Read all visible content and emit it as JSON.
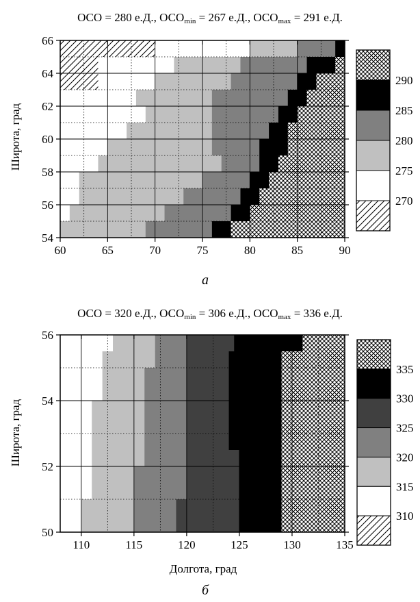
{
  "chart_data": [
    {
      "type": "heatmap",
      "title": "ОСО = 280 е.Д., ОСОmin = 267 е.Д., ОСОmax = 291 е.Д.",
      "title_parts": {
        "mean": "ОСО = 280 е.Д., ",
        "min_prefix": "ОСО",
        "min_sub": "min",
        "min_value": " = 267 е.Д., ",
        "max_prefix": "ОСО",
        "max_sub": "max",
        "max_value": " = 291 е.Д."
      },
      "xlabel": "",
      "ylabel": "Широта, град",
      "xlim": [
        60,
        90
      ],
      "ylim": [
        54,
        66
      ],
      "xticks": [
        "60",
        "65",
        "70",
        "75",
        "80",
        "85",
        "90"
      ],
      "yticks": [
        "54",
        "56",
        "58",
        "60",
        "62",
        "64",
        "66"
      ],
      "legend_levels": [
        "270",
        "275",
        "280",
        "285",
        "290"
      ],
      "caption": "а",
      "color_classes": [
        {
          "label": "<270",
          "fill": "hatch"
        },
        {
          "label": "270-275",
          "fill": "#ffffff"
        },
        {
          "label": "275-280",
          "fill": "#c0c0c0"
        },
        {
          "label": "280-285",
          "fill": "#808080"
        },
        {
          "label": "285-290",
          "fill": "#000000"
        },
        {
          "label": ">290",
          "fill": "crosshatch"
        }
      ],
      "rows": [
        {
          "y0": 65,
          "y1": 66,
          "b": [
            70,
            80,
            85,
            89
          ]
        },
        {
          "y0": 64,
          "y1": 65,
          "b": [
            64,
            72,
            79,
            86,
            89
          ]
        },
        {
          "y0": 63,
          "y1": 64,
          "b": [
            64,
            70,
            78,
            85,
            87
          ]
        },
        {
          "y0": 62,
          "y1": 63,
          "b": [
            60,
            68,
            76,
            84,
            86
          ]
        },
        {
          "y0": 61,
          "y1": 62,
          "b": [
            60,
            69,
            76,
            83,
            85
          ]
        },
        {
          "y0": 60,
          "y1": 61,
          "b": [
            60,
            67,
            76,
            82,
            84,
            88,
            89
          ]
        },
        {
          "y0": 59,
          "y1": 60,
          "b": [
            60,
            65,
            76,
            81,
            84,
            89,
            90
          ]
        },
        {
          "y0": 58,
          "y1": 59,
          "b": [
            60,
            64,
            77,
            81,
            83,
            89,
            90
          ]
        },
        {
          "y0": 57,
          "y1": 58,
          "b": [
            60,
            62,
            75,
            80,
            82,
            88,
            90
          ]
        },
        {
          "y0": 56,
          "y1": 57,
          "b": [
            60,
            62,
            73,
            79,
            81,
            89,
            90
          ]
        },
        {
          "y0": 55,
          "y1": 56,
          "b": [
            60,
            61,
            71,
            78,
            80,
            89,
            90
          ]
        },
        {
          "y0": 54,
          "y1": 55,
          "b": [
            60,
            60,
            69,
            76,
            78,
            86,
            88
          ]
        }
      ],
      "grid_x": [
        65,
        70,
        75,
        80,
        85
      ],
      "grid_y": [
        56,
        58,
        60,
        62,
        64
      ],
      "dotted_x": [
        62.5,
        67.5,
        72.5,
        77.5,
        82.5,
        87.5
      ],
      "dotted_y": [
        55,
        57,
        59,
        61,
        63,
        65
      ]
    },
    {
      "type": "heatmap",
      "title": "ОСО = 320 е.Д., ОСОmin = 306 е.Д., ОСОmax = 336 е.Д.",
      "title_parts": {
        "mean": "ОСО = 320 е.Д., ",
        "min_prefix": "ОСО",
        "min_sub": "min",
        "min_value": " = 306 е.Д., ",
        "max_prefix": "ОСО",
        "max_sub": "max",
        "max_value": " = 336 е.Д."
      },
      "xlabel": "Долгота, град",
      "ylabel": "Широта, град",
      "xlim": [
        108,
        135
      ],
      "ylim": [
        50,
        56
      ],
      "xticks": [
        "110",
        "115",
        "120",
        "125",
        "130",
        "135"
      ],
      "xtick_values": [
        110,
        115,
        120,
        125,
        130,
        135
      ],
      "yticks": [
        "50",
        "52",
        "54",
        "56"
      ],
      "legend_levels": [
        "310",
        "315",
        "320",
        "325",
        "330",
        "335"
      ],
      "caption": "б",
      "color_classes": [
        {
          "label": "<310",
          "fill": "hatch"
        },
        {
          "label": "310-315",
          "fill": "#ffffff"
        },
        {
          "label": "315-320",
          "fill": "#c0c0c0"
        },
        {
          "label": "320-325",
          "fill": "#808080"
        },
        {
          "label": "325-330",
          "fill": "#404040"
        },
        {
          "label": "330-335",
          "fill": "#000000"
        },
        {
          "label": ">335",
          "fill": "crosshatch"
        }
      ],
      "rows": [
        {
          "y0": 55.5,
          "y1": 56,
          "b": [
            108,
            113,
            117,
            120,
            124.5,
            131
          ]
        },
        {
          "y0": 55,
          "y1": 55.5,
          "b": [
            108,
            112,
            117,
            120,
            124,
            129,
            135
          ]
        },
        {
          "y0": 54.5,
          "y1": 55,
          "b": [
            108,
            112,
            116,
            120,
            124,
            129,
            134
          ]
        },
        {
          "y0": 54,
          "y1": 54.5,
          "b": [
            108,
            112,
            116,
            120,
            124,
            129,
            134
          ]
        },
        {
          "y0": 53.5,
          "y1": 54,
          "b": [
            108,
            111,
            116,
            120,
            124,
            129,
            135
          ]
        },
        {
          "y0": 53,
          "y1": 53.5,
          "b": [
            108,
            111,
            116,
            120,
            124,
            129,
            135
          ]
        },
        {
          "y0": 52.5,
          "y1": 53,
          "b": [
            108,
            111,
            116,
            120,
            124,
            129,
            135
          ]
        },
        {
          "y0": 52,
          "y1": 52.5,
          "b": [
            108,
            111,
            116,
            120,
            125,
            129,
            135
          ]
        },
        {
          "y0": 51.5,
          "y1": 52,
          "b": [
            108,
            111,
            115,
            120,
            125,
            129,
            135
          ]
        },
        {
          "y0": 51,
          "y1": 51.5,
          "b": [
            108,
            111,
            115,
            120,
            125,
            129,
            135
          ]
        },
        {
          "y0": 50.5,
          "y1": 51,
          "b": [
            108,
            110,
            115,
            119,
            125,
            129,
            135
          ]
        },
        {
          "y0": 50,
          "y1": 50.5,
          "b": [
            108,
            110,
            115,
            119,
            125,
            129,
            135
          ]
        }
      ],
      "grid_x": [
        110,
        115,
        120,
        125,
        130
      ],
      "grid_y": [
        52,
        54
      ],
      "dotted_x": [
        112.5,
        117.5,
        122.5,
        127.5,
        132.5
      ],
      "dotted_y": [
        51,
        53,
        55
      ]
    }
  ]
}
